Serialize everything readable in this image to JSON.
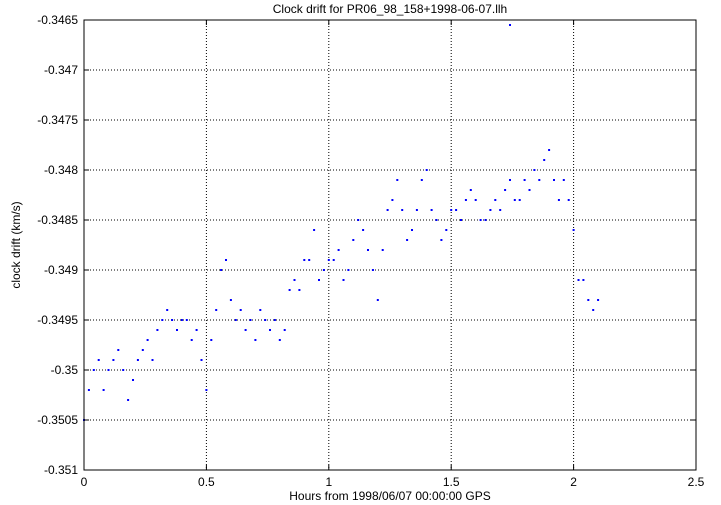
{
  "chart_data": {
    "type": "scatter",
    "title": "Clock drift for PR06_98_158+1998-06-07.llh",
    "xlabel": "Hours from 1998/06/07 00:00:00 GPS",
    "ylabel": "clock drift (km/s)",
    "xlim": [
      0,
      2.5
    ],
    "ylim": [
      -0.351,
      -0.3465
    ],
    "x_ticks": [
      0,
      0.5,
      1,
      1.5,
      2,
      2.5
    ],
    "x_tick_labels": [
      "0",
      "0.5",
      "1",
      "1.5",
      "2",
      "2.5"
    ],
    "y_ticks": [
      -0.351,
      -0.3505,
      -0.35,
      -0.3495,
      -0.349,
      -0.3485,
      -0.348,
      -0.3475,
      -0.347,
      -0.3465
    ],
    "y_tick_labels": [
      "-0.351",
      "-0.3505",
      "-0.35",
      "-0.3495",
      "-0.349",
      "-0.3485",
      "-0.348",
      "-0.3475",
      "-0.347",
      "-0.3465"
    ],
    "grid": true,
    "grid_style": "dotted",
    "point_color": "#0000ff",
    "series": [
      {
        "x": [
          0.0,
          0.02,
          0.04,
          0.06,
          0.08,
          0.1,
          0.12,
          0.14,
          0.16,
          0.18,
          0.2,
          0.22,
          0.24,
          0.26,
          0.28,
          0.3,
          0.32,
          0.34,
          0.36,
          0.38,
          0.4,
          0.42,
          0.44,
          0.46,
          0.48,
          0.5,
          0.52,
          0.54,
          0.56,
          0.58,
          0.6,
          0.62,
          0.64,
          0.66,
          0.68,
          0.7,
          0.72,
          0.74,
          0.76,
          0.78,
          0.8,
          0.82,
          0.84,
          0.86,
          0.88,
          0.9,
          0.92,
          0.94,
          0.96,
          0.98,
          1.0,
          1.02,
          1.04,
          1.06,
          1.08,
          1.1,
          1.12,
          1.14,
          1.16,
          1.18,
          1.2,
          1.22,
          1.24,
          1.26,
          1.28,
          1.3,
          1.32,
          1.34,
          1.36,
          1.38,
          1.4,
          1.42,
          1.44,
          1.46,
          1.48,
          1.5,
          1.52,
          1.54,
          1.56,
          1.58,
          1.6,
          1.62,
          1.64,
          1.66,
          1.68,
          1.7,
          1.72,
          1.74,
          1.76,
          1.78,
          1.8,
          1.82,
          1.84,
          1.86,
          1.88,
          1.9,
          1.92,
          1.94,
          1.96,
          1.98,
          2.0,
          2.02,
          2.04,
          2.06,
          2.08,
          2.1
        ],
        "y": [
          -0.3505,
          -0.3502,
          -0.35,
          -0.3499,
          -0.3502,
          -0.35,
          -0.3499,
          -0.3498,
          -0.35,
          -0.3503,
          -0.3501,
          -0.3499,
          -0.3498,
          -0.3497,
          -0.3499,
          -0.3496,
          -0.3495,
          -0.3494,
          -0.3495,
          -0.3496,
          -0.3495,
          -0.3495,
          -0.3497,
          -0.3496,
          -0.3499,
          -0.3502,
          -0.3497,
          -0.3494,
          -0.349,
          -0.3489,
          -0.3493,
          -0.3495,
          -0.3494,
          -0.3496,
          -0.3495,
          -0.3497,
          -0.3494,
          -0.3495,
          -0.3496,
          -0.3495,
          -0.3497,
          -0.3496,
          -0.3492,
          -0.3491,
          -0.3492,
          -0.3489,
          -0.3489,
          -0.3486,
          -0.3491,
          -0.349,
          -0.3489,
          -0.3489,
          -0.3488,
          -0.3491,
          -0.349,
          -0.3487,
          -0.3485,
          -0.3486,
          -0.3488,
          -0.349,
          -0.3493,
          -0.3488,
          -0.3484,
          -0.3483,
          -0.3481,
          -0.3484,
          -0.3487,
          -0.3486,
          -0.3484,
          -0.3481,
          -0.348,
          -0.3484,
          -0.3485,
          -0.3487,
          -0.3486,
          -0.3484,
          -0.3484,
          -0.3485,
          -0.3483,
          -0.3482,
          -0.3483,
          -0.3485,
          -0.3485,
          -0.3484,
          -0.3483,
          -0.3484,
          -0.3482,
          -0.3481,
          -0.3483,
          -0.3483,
          -0.3481,
          -0.3482,
          -0.348,
          -0.3481,
          -0.3479,
          -0.3478,
          -0.3481,
          -0.3483,
          -0.3481,
          -0.3483,
          -0.3486,
          -0.3491,
          -0.3491,
          -0.3493,
          -0.3494,
          -0.3493
        ],
        "outliers": [
          [
            1.74,
            -0.34655
          ]
        ]
      }
    ]
  }
}
